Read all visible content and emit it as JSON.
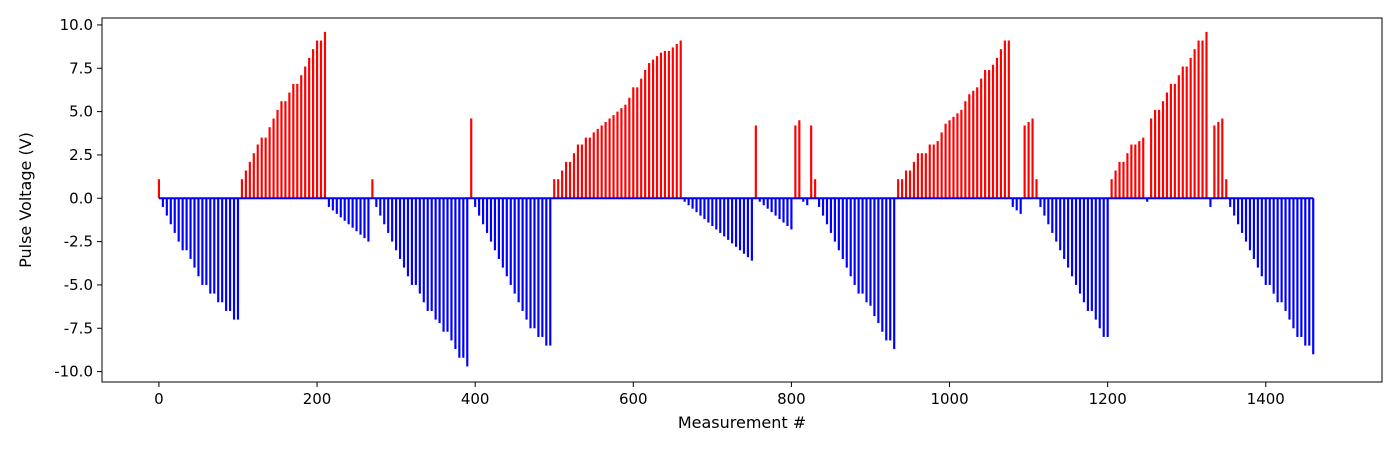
{
  "chart_data": {
    "type": "bar",
    "title": "",
    "xlabel": "Measurement #",
    "ylabel": "Pulse Voltage (V)",
    "xlim": [
      -72,
      1547
    ],
    "ylim": [
      -10.6,
      10.4
    ],
    "xticks": [
      0,
      200,
      400,
      600,
      800,
      1000,
      1200,
      1400
    ],
    "yticks": [
      -10.0,
      -7.5,
      -5.0,
      -2.5,
      0.0,
      2.5,
      5.0,
      7.5,
      10.0
    ],
    "grid": false,
    "legend": "none",
    "colors": {
      "positive": "#ff0000",
      "negative": "#0000ff",
      "axis": "#000000"
    },
    "bar_spacing": 5,
    "values": [
      1.1,
      -0.5,
      -1.0,
      -1.5,
      -2.0,
      -2.5,
      -3.0,
      -3.0,
      -3.5,
      -4.0,
      -4.5,
      -5.0,
      -5.0,
      -5.5,
      -5.5,
      -6.0,
      -6.0,
      -6.5,
      -6.5,
      -7.0,
      -7.0,
      1.1,
      1.6,
      2.1,
      2.6,
      3.1,
      3.5,
      3.5,
      4.1,
      4.6,
      5.1,
      5.6,
      5.6,
      6.1,
      6.6,
      6.6,
      7.1,
      7.6,
      8.1,
      8.6,
      9.1,
      9.1,
      9.6,
      -0.5,
      -0.7,
      -0.9,
      -1.1,
      -1.3,
      -1.5,
      -1.7,
      -1.9,
      -2.1,
      -2.3,
      -2.5,
      1.1,
      -0.5,
      -1.0,
      -1.5,
      -2.0,
      -2.5,
      -3.0,
      -3.5,
      -4.0,
      -4.5,
      -5.0,
      -5.0,
      -5.5,
      -6.0,
      -6.5,
      -6.5,
      -7.0,
      -7.2,
      -7.7,
      -7.7,
      -8.2,
      -8.7,
      -9.2,
      -9.2,
      -9.7,
      4.6,
      -0.5,
      -1.0,
      -1.5,
      -2.0,
      -2.5,
      -3.0,
      -3.5,
      -4.0,
      -4.5,
      -5.0,
      -5.5,
      -6.0,
      -6.5,
      -7.0,
      -7.5,
      -7.5,
      -8.0,
      -8.0,
      -8.5,
      -8.5,
      1.1,
      1.1,
      1.6,
      2.1,
      2.1,
      2.6,
      3.1,
      3.1,
      3.5,
      3.5,
      3.8,
      4.0,
      4.2,
      4.4,
      4.6,
      4.8,
      5.0,
      5.2,
      5.4,
      5.8,
      6.4,
      6.4,
      6.9,
      7.4,
      7.8,
      8.0,
      8.2,
      8.4,
      8.5,
      8.5,
      8.7,
      8.9,
      9.1,
      -0.2,
      -0.4,
      -0.6,
      -0.8,
      -1.0,
      -1.2,
      -1.4,
      -1.6,
      -1.8,
      -2.0,
      -2.2,
      -2.4,
      -2.6,
      -2.8,
      -3.0,
      -3.2,
      -3.4,
      -3.6,
      4.2,
      -0.2,
      -0.4,
      -0.6,
      -0.8,
      -1.0,
      -1.2,
      -1.4,
      -1.6,
      -1.8,
      4.2,
      4.5,
      -0.2,
      -0.4,
      4.2,
      1.1,
      -0.5,
      -1.0,
      -1.5,
      -2.0,
      -2.5,
      -3.0,
      -3.5,
      -4.0,
      -4.5,
      -5.0,
      -5.5,
      -5.5,
      -6.0,
      -6.2,
      -6.8,
      -7.2,
      -7.7,
      -8.2,
      -8.2,
      -8.7,
      1.1,
      1.1,
      1.6,
      1.6,
      2.1,
      2.6,
      2.6,
      2.6,
      3.1,
      3.1,
      3.3,
      3.8,
      4.3,
      4.5,
      4.7,
      4.9,
      5.1,
      5.6,
      6.0,
      6.2,
      6.4,
      6.9,
      7.4,
      7.4,
      7.7,
      8.1,
      8.6,
      9.1,
      9.1,
      -0.5,
      -0.7,
      -0.9,
      4.2,
      4.4,
      4.6,
      1.1,
      -0.5,
      -1.0,
      -1.5,
      -2.0,
      -2.5,
      -3.0,
      -3.5,
      -4.0,
      -4.5,
      -5.0,
      -5.5,
      -6.0,
      -6.5,
      -6.5,
      -7.0,
      -7.5,
      -8.0,
      -8.0,
      1.1,
      1.6,
      2.1,
      2.1,
      2.6,
      3.1,
      3.1,
      3.3,
      3.5,
      -0.2,
      4.6,
      5.1,
      5.1,
      5.6,
      6.1,
      6.6,
      6.6,
      7.1,
      7.6,
      7.6,
      8.1,
      8.6,
      9.1,
      9.1,
      9.6,
      -0.5,
      4.2,
      4.4,
      4.6,
      1.1,
      -0.5,
      -1.0,
      -1.5,
      -2.0,
      -2.5,
      -3.0,
      -3.5,
      -4.0,
      -4.5,
      -5.0,
      -5.0,
      -5.5,
      -6.0,
      -6.0,
      -6.5,
      -7.0,
      -7.5,
      -8.0,
      -8.0,
      -8.5,
      -8.5,
      -9.0
    ]
  }
}
